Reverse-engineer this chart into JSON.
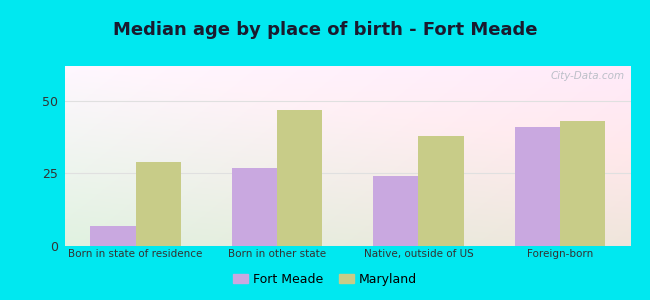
{
  "title": "Median age by place of birth - Fort Meade",
  "categories": [
    "Born in state of residence",
    "Born in other state",
    "Native, outside of US",
    "Foreign-born"
  ],
  "fort_meade_values": [
    7,
    27,
    24,
    41
  ],
  "maryland_values": [
    29,
    47,
    38,
    43
  ],
  "fort_meade_color": "#c9a8e0",
  "maryland_color": "#c8cc88",
  "ylim": [
    0,
    62
  ],
  "yticks": [
    0,
    25,
    50
  ],
  "background_outer": "#00e8f0",
  "grid_color": "#e0e0e0",
  "title_fontsize": 13,
  "legend_labels": [
    "Fort Meade",
    "Maryland"
  ],
  "bar_width": 0.32,
  "watermark": "City-Data.com"
}
